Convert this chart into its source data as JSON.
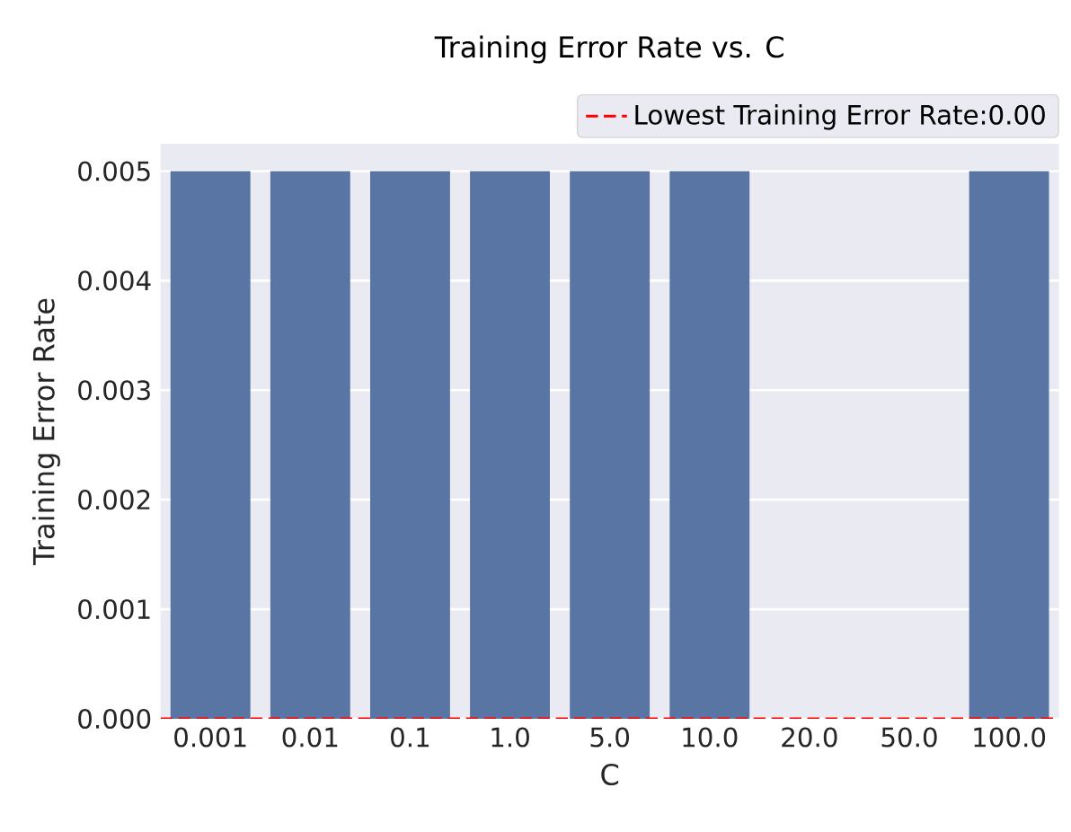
{
  "chart_data": {
    "type": "bar",
    "title": "Training Error Rate vs. C",
    "xlabel": "C",
    "ylabel": "Training Error Rate",
    "categories": [
      "0.001",
      "0.01",
      "0.1",
      "1.0",
      "5.0",
      "10.0",
      "20.0",
      "50.0",
      "100.0"
    ],
    "values": [
      0.005,
      0.005,
      0.005,
      0.005,
      0.005,
      0.005,
      0,
      0,
      0.005
    ],
    "color": "#5975a4",
    "ylim": [
      0,
      0.00525
    ],
    "yticks": [
      {
        "value": 0,
        "label": "0.000"
      },
      {
        "value": 0.001,
        "label": "0.001"
      },
      {
        "value": 0.002,
        "label": "0.002"
      },
      {
        "value": 0.003,
        "label": "0.003"
      },
      {
        "value": 0.004,
        "label": "0.004"
      },
      {
        "value": 0.005,
        "label": "0.005"
      }
    ],
    "ref_lines": [
      {
        "axis": "y",
        "value": 0,
        "label": "Lowest Training Error Rate:0.00",
        "color": "#ff0000",
        "line_style": "dashed"
      }
    ],
    "grid": "y",
    "legend": "top right"
  }
}
